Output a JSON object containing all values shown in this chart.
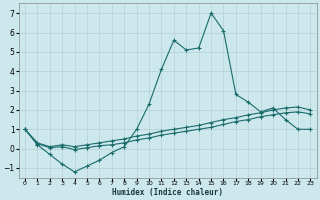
{
  "xlabel": "Humidex (Indice chaleur)",
  "bg_color": "#cce8ec",
  "grid_color": "#b8d4d8",
  "line_color": "#1a6b6b",
  "xlim": [
    -0.5,
    23.5
  ],
  "ylim": [
    -1.5,
    7.5
  ],
  "yticks": [
    -1,
    0,
    1,
    2,
    3,
    4,
    5,
    6,
    7
  ],
  "xticks": [
    0,
    1,
    2,
    3,
    4,
    5,
    6,
    7,
    8,
    9,
    10,
    11,
    12,
    13,
    14,
    15,
    16,
    17,
    18,
    19,
    20,
    21,
    22,
    23
  ],
  "series1_x": [
    0,
    1,
    2,
    3,
    4,
    5,
    6,
    7,
    8,
    9,
    10,
    11,
    12,
    13,
    14,
    15,
    16,
    17,
    18,
    19,
    20,
    21,
    22,
    23
  ],
  "series1_y": [
    1.0,
    0.2,
    -0.3,
    -0.8,
    -1.2,
    -0.9,
    -0.6,
    -0.2,
    0.1,
    1.0,
    2.3,
    4.1,
    5.6,
    5.1,
    5.2,
    7.0,
    6.1,
    2.8,
    2.4,
    1.9,
    2.1,
    1.5,
    1.0,
    1.0
  ],
  "series2_x": [
    0,
    1,
    2,
    3,
    4,
    5,
    6,
    7,
    8,
    9,
    10,
    11,
    12,
    13,
    14,
    15,
    16,
    17,
    18,
    19,
    20,
    21,
    22,
    23
  ],
  "series2_y": [
    1.0,
    0.3,
    0.1,
    0.2,
    0.1,
    0.2,
    0.3,
    0.4,
    0.5,
    0.65,
    0.75,
    0.9,
    1.0,
    1.1,
    1.2,
    1.35,
    1.5,
    1.6,
    1.75,
    1.85,
    2.0,
    2.1,
    2.15,
    2.0
  ],
  "series3_x": [
    0,
    1,
    2,
    3,
    4,
    5,
    6,
    7,
    8,
    9,
    10,
    11,
    12,
    13,
    14,
    15,
    16,
    17,
    18,
    19,
    20,
    21,
    22,
    23
  ],
  "series3_y": [
    1.0,
    0.25,
    0.05,
    0.1,
    -0.05,
    0.05,
    0.15,
    0.2,
    0.3,
    0.45,
    0.55,
    0.7,
    0.8,
    0.9,
    1.0,
    1.1,
    1.25,
    1.4,
    1.5,
    1.65,
    1.75,
    1.85,
    1.9,
    1.8
  ]
}
